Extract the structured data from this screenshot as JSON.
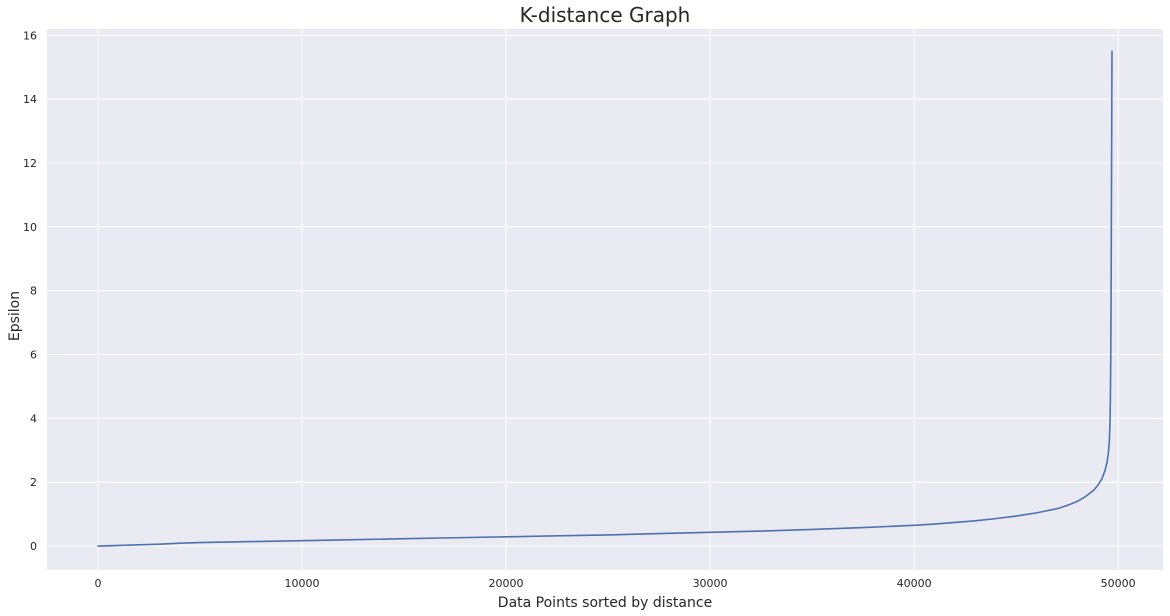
{
  "chart_data": {
    "type": "line",
    "title": "K-distance Graph",
    "xlabel": "Data Points sorted by distance",
    "ylabel": "Epsilon",
    "xlim": [
      -2500,
      52200
    ],
    "ylim": [
      -0.75,
      16.2
    ],
    "x_ticks": [
      0,
      10000,
      20000,
      30000,
      40000,
      50000
    ],
    "y_ticks": [
      0,
      2,
      4,
      6,
      8,
      10,
      12,
      14,
      16
    ],
    "grid": true,
    "legend": "none",
    "background_color": "#eaeaf2",
    "grid_color": "#ffffff",
    "series": [
      {
        "color": "#4c72b0",
        "x": [
          0,
          1000,
          2000,
          3000,
          4000,
          5000,
          7500,
          10000,
          12500,
          15000,
          17500,
          20000,
          22500,
          25000,
          27500,
          30000,
          32500,
          35000,
          37500,
          40000,
          41000,
          42000,
          43000,
          44000,
          45000,
          46000,
          47000,
          47500,
          48000,
          48400,
          48800,
          49000,
          49200,
          49350,
          49450,
          49520,
          49570,
          49600,
          49620,
          49640,
          49660,
          49680,
          49700
        ],
        "y": [
          0,
          0.02,
          0.04,
          0.06,
          0.09,
          0.11,
          0.14,
          0.17,
          0.2,
          0.23,
          0.26,
          0.29,
          0.32,
          0.35,
          0.39,
          0.43,
          0.47,
          0.52,
          0.58,
          0.65,
          0.69,
          0.74,
          0.79,
          0.86,
          0.94,
          1.04,
          1.17,
          1.27,
          1.4,
          1.55,
          1.75,
          1.9,
          2.1,
          2.35,
          2.6,
          2.9,
          3.3,
          3.8,
          4.5,
          6.0,
          8.5,
          12.0,
          15.5
        ]
      }
    ]
  }
}
